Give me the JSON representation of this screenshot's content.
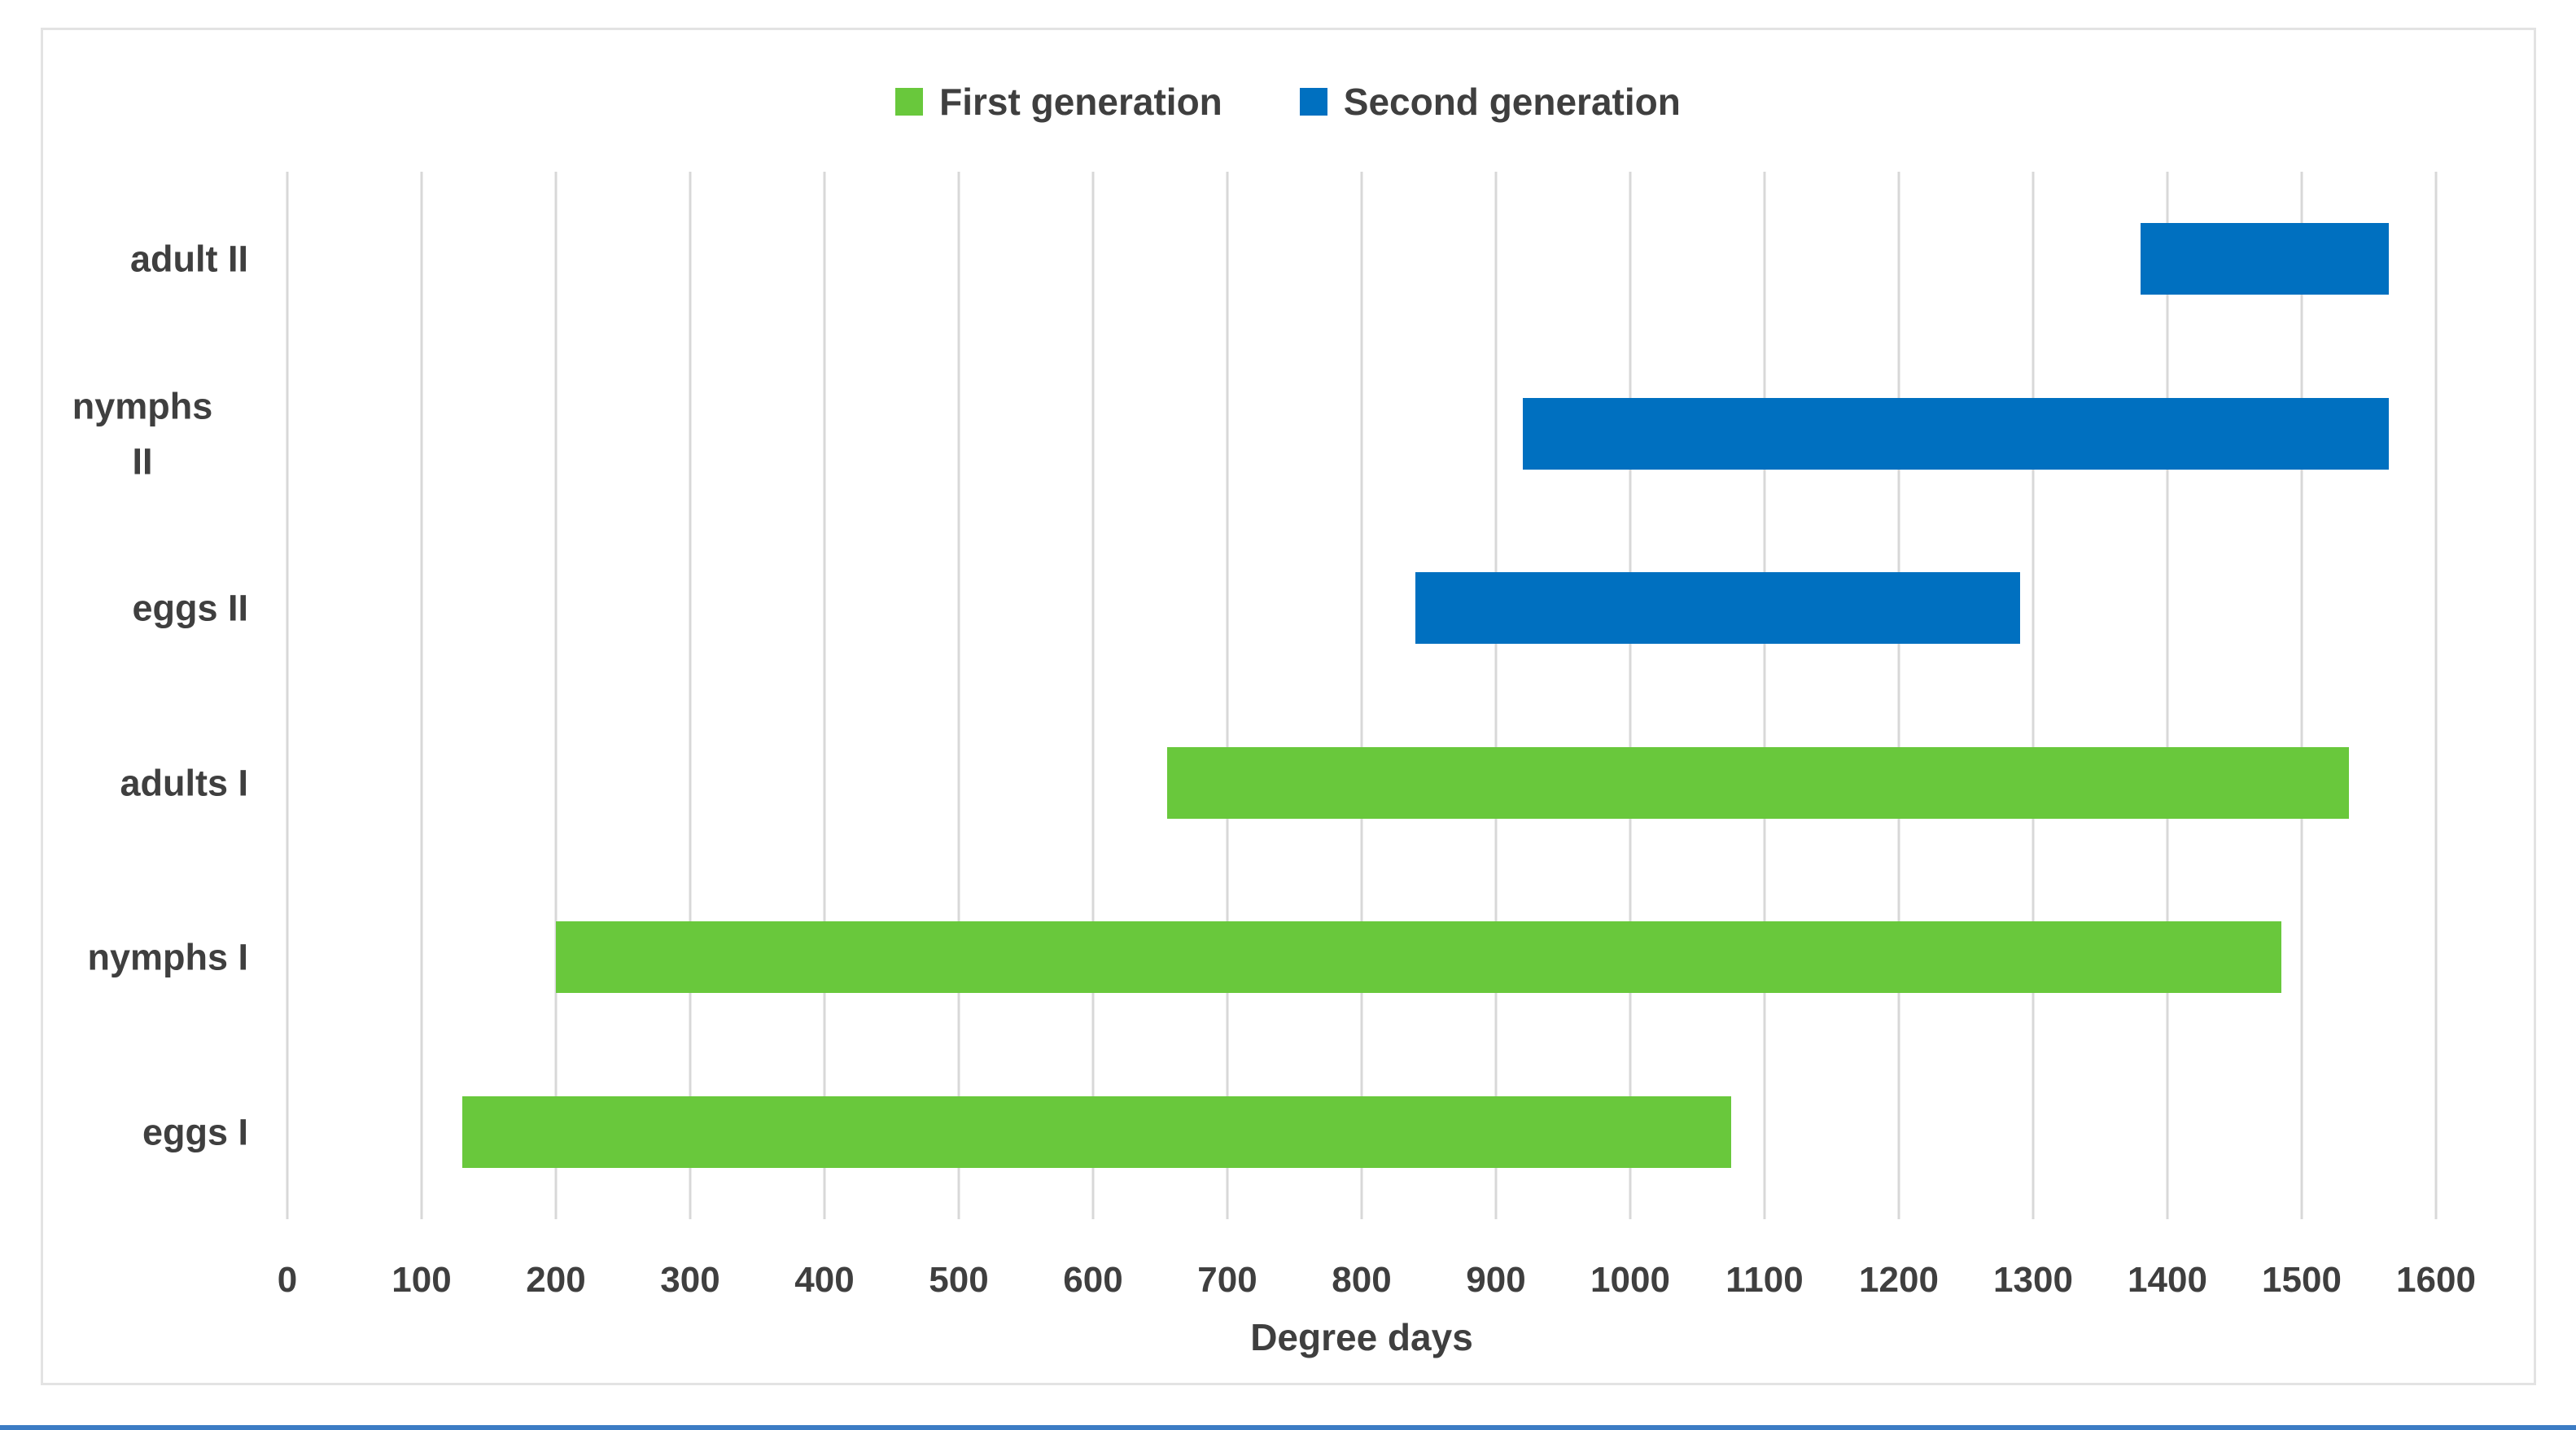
{
  "chart_data": {
    "type": "bar",
    "orientation": "horizontal",
    "title": "",
    "xlabel": "Degree days",
    "ylabel": "",
    "xlim": [
      0,
      1600
    ],
    "x_ticks": [
      0,
      100,
      200,
      300,
      400,
      500,
      600,
      700,
      800,
      900,
      1000,
      1100,
      1200,
      1300,
      1400,
      1500,
      1600
    ],
    "grid": "vertical-gridlines-on",
    "legend_position": "top-center",
    "categories": [
      "adult II",
      "nymphs II",
      "eggs II",
      "adults I",
      "nymphs I",
      "eggs I"
    ],
    "legend": [
      {
        "name": "First generation",
        "key": "first",
        "color": "#69C83C"
      },
      {
        "name": "Second generation",
        "key": "second",
        "color": "#0070C0"
      }
    ],
    "rows": [
      {
        "category": "adult II",
        "label_lines": [
          "adult II"
        ],
        "generation": "second",
        "start": 1380,
        "end": 1565
      },
      {
        "category": "nymphs II",
        "label_lines": [
          "nymphs",
          "II"
        ],
        "generation": "second",
        "start": 920,
        "end": 1565
      },
      {
        "category": "eggs II",
        "label_lines": [
          "eggs II"
        ],
        "generation": "second",
        "start": 840,
        "end": 1290
      },
      {
        "category": "adults I",
        "label_lines": [
          "adults I"
        ],
        "generation": "first",
        "start": 655,
        "end": 1535
      },
      {
        "category": "nymphs I",
        "label_lines": [
          "nymphs I"
        ],
        "generation": "first",
        "start": 200,
        "end": 1485
      },
      {
        "category": "eggs I",
        "label_lines": [
          "eggs I"
        ],
        "generation": "first",
        "start": 130,
        "end": 1075
      }
    ]
  },
  "colors": {
    "text": "#3F3F3F",
    "gridline": "#D8D8D8",
    "chart_border": "#E3E3E3",
    "background": "#FFFFFF",
    "bottom_rule": "#3C7CC4",
    "first_generation": "#69C83C",
    "second_generation": "#0070C0"
  }
}
